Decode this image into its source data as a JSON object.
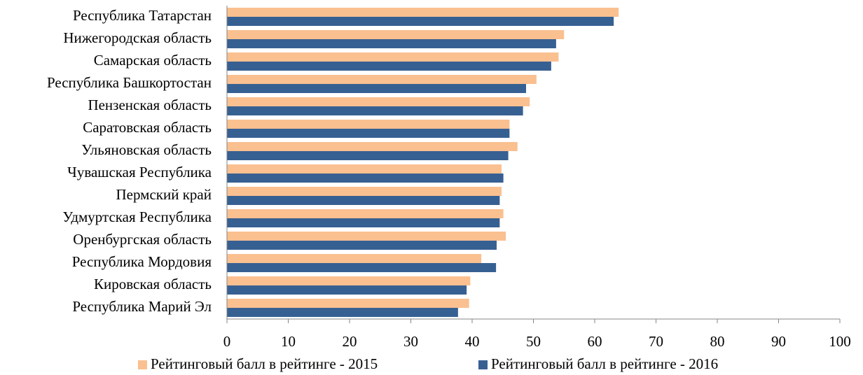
{
  "chart_data": {
    "type": "hbar",
    "categories": [
      "Республика Татарстан",
      "Нижегородская область",
      "Самарская область",
      "Республика Башкортостан",
      "Пензенская область",
      "Саратовская область",
      "Ульяновская область",
      "Чувашская Республика",
      "Пермский край",
      "Удмуртская Республика",
      "Оренбургская область",
      "Республика Мордовия",
      "Кировская область",
      "Республика Марий Эл"
    ],
    "series": [
      {
        "name": "Рейтинговый балл в рейтинге - 2015",
        "color": "#fac090",
        "values": [
          63.9,
          55.0,
          54.1,
          50.5,
          49.4,
          46.1,
          47.4,
          44.8,
          44.8,
          45.1,
          45.5,
          41.5,
          39.7,
          39.5
        ]
      },
      {
        "name": "Рейтинговый балл в рейтинге - 2016",
        "color": "#376092",
        "values": [
          63.1,
          53.7,
          52.9,
          48.8,
          48.3,
          46.1,
          45.9,
          45.1,
          44.5,
          44.5,
          44.0,
          43.9,
          39.1,
          37.7
        ]
      }
    ],
    "xlim": [
      0,
      100
    ],
    "xticks": [
      0,
      10,
      20,
      30,
      40,
      50,
      60,
      70,
      80,
      90,
      100
    ],
    "legend": "bottom"
  }
}
